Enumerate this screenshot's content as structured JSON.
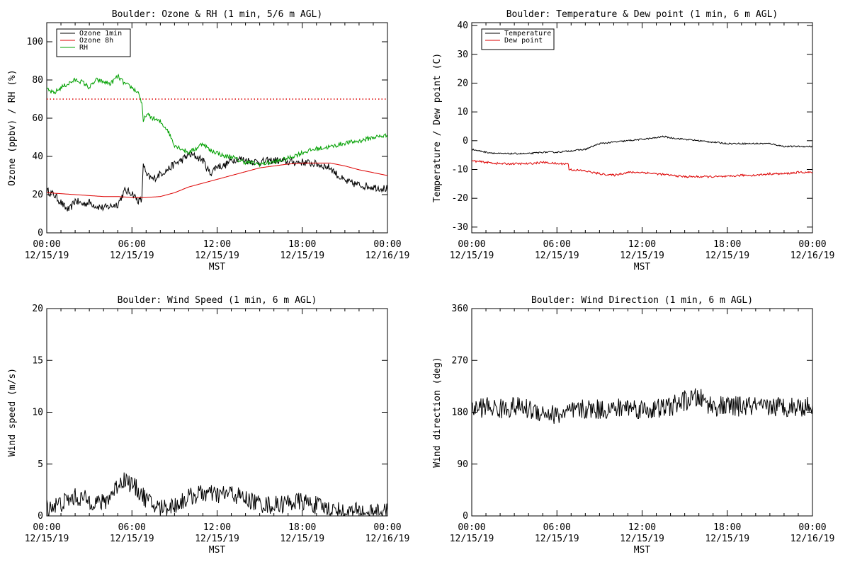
{
  "chart_data": [
    {
      "type": "line",
      "title": "Boulder: Ozone & RH (1 min, 5/6 m AGL)",
      "ylabel": "Ozone (ppbv) / RH (%)",
      "xlabel": "MST",
      "ylim": [
        0,
        110
      ],
      "yticks": [
        0,
        20,
        40,
        60,
        80,
        100
      ],
      "x_range_hours": [
        0,
        24
      ],
      "xtick_hours": [
        0,
        6,
        12,
        18,
        24
      ],
      "xtick_labels": [
        [
          "00:00",
          "12/15/19"
        ],
        [
          "06:00",
          "12/15/19"
        ],
        [
          "12:00",
          "12/15/19"
        ],
        [
          "18:00",
          "12/15/19"
        ],
        [
          "00:00",
          "12/16/19"
        ]
      ],
      "legend": {
        "position": "top-left",
        "entries": [
          {
            "name": "Ozone 1min",
            "color": "#000000"
          },
          {
            "name": "Ozone 8h",
            "color": "#dd0000"
          },
          {
            "name": "RH",
            "color": "#00a000"
          }
        ]
      },
      "reference_line": {
        "y": 70,
        "color": "#dd0000",
        "style": "dotted"
      },
      "series": [
        {
          "name": "Ozone 1min",
          "color": "#000000",
          "noise": 2.0,
          "x": [
            0,
            0.5,
            1,
            1.3,
            1.6,
            2,
            2.5,
            3,
            3.5,
            4,
            4.5,
            5,
            5.5,
            6,
            6.4,
            6.7,
            6.75,
            6.8,
            7,
            7.5,
            8,
            8.5,
            9,
            9.5,
            10,
            10.5,
            11,
            11.5,
            12,
            12.5,
            13,
            13.5,
            14,
            15,
            16,
            17,
            18,
            19,
            20,
            20.5,
            21,
            22,
            23,
            24
          ],
          "y": [
            22,
            20,
            16,
            13,
            12,
            17,
            15,
            16,
            14,
            13,
            14,
            15,
            22,
            21,
            17,
            17,
            28,
            37,
            30,
            28,
            31,
            33,
            36,
            38,
            41,
            40,
            38,
            31,
            35,
            35,
            38,
            39,
            38,
            37,
            38,
            37,
            37,
            36,
            34,
            30,
            27,
            25,
            24,
            23
          ]
        },
        {
          "name": "Ozone 8h",
          "color": "#dd0000",
          "noise": 0,
          "x": [
            0,
            2,
            4,
            5,
            6,
            7,
            8,
            9,
            10,
            11,
            12,
            13,
            14,
            15,
            16,
            17,
            18,
            19,
            20,
            21,
            22,
            23,
            24
          ],
          "y": [
            21,
            20,
            19,
            19,
            18.5,
            18.5,
            19,
            21,
            24,
            26,
            28,
            30,
            32,
            34,
            35,
            36,
            36.5,
            36.5,
            36.5,
            35,
            33,
            31.5,
            30
          ]
        },
        {
          "name": "RH",
          "color": "#00a000",
          "noise": 1.2,
          "x": [
            0,
            0.5,
            1,
            1.5,
            2,
            2.5,
            3,
            3.5,
            4,
            4.5,
            5,
            5.5,
            6,
            6.5,
            6.7,
            6.8,
            6.9,
            7,
            7.5,
            8,
            8.5,
            9,
            9.5,
            10,
            10.5,
            11,
            11.5,
            12,
            12.5,
            13,
            13.5,
            14,
            15,
            16,
            17,
            18,
            19,
            20,
            21,
            22,
            23,
            24
          ],
          "y": [
            75,
            73,
            76,
            78,
            80,
            79,
            76,
            80,
            79,
            78,
            82,
            78,
            76,
            73,
            67,
            58,
            60,
            62,
            60,
            58,
            54,
            46,
            44,
            42,
            44,
            47,
            43,
            42,
            40,
            40,
            38,
            37,
            36,
            37,
            39,
            42,
            44,
            45,
            47,
            48,
            50,
            51
          ]
        }
      ]
    },
    {
      "type": "line",
      "title": "Boulder: Temperature & Dew point (1 min, 6 m AGL)",
      "ylabel": "Temperature / Dew point (C)",
      "xlabel": "MST",
      "ylim": [
        -32,
        41
      ],
      "yticks": [
        -30,
        -20,
        -10,
        0,
        10,
        20,
        30,
        40
      ],
      "x_range_hours": [
        0,
        24
      ],
      "xtick_hours": [
        0,
        6,
        12,
        18,
        24
      ],
      "xtick_labels": [
        [
          "00:00",
          "12/15/19"
        ],
        [
          "06:00",
          "12/15/19"
        ],
        [
          "12:00",
          "12/15/19"
        ],
        [
          "18:00",
          "12/15/19"
        ],
        [
          "00:00",
          "12/16/19"
        ]
      ],
      "legend": {
        "position": "top-left",
        "entries": [
          {
            "name": "Temperature",
            "color": "#000000"
          },
          {
            "name": "Dew point",
            "color": "#dd0000"
          }
        ]
      },
      "series": [
        {
          "name": "Temperature",
          "color": "#000000",
          "noise": 0.25,
          "x": [
            0,
            1,
            2,
            3,
            4,
            5,
            6,
            7,
            8,
            9,
            10,
            11,
            12,
            13,
            13.5,
            14,
            15,
            16,
            17,
            18,
            19,
            20,
            21,
            22,
            23,
            24
          ],
          "y": [
            -3,
            -4,
            -4.5,
            -4.5,
            -4.5,
            -4,
            -4,
            -3.5,
            -3,
            -1,
            -0.5,
            0,
            0.5,
            1,
            1.5,
            1,
            0.5,
            0,
            -0.5,
            -1,
            -1,
            -1,
            -1,
            -2,
            -2,
            -2
          ]
        },
        {
          "name": "Dew point",
          "color": "#dd0000",
          "noise": 0.35,
          "x": [
            0,
            1,
            2,
            3,
            4,
            5,
            6,
            6.8,
            6.85,
            8,
            9,
            10,
            11,
            12,
            13,
            14,
            15,
            16,
            17,
            18,
            19,
            20,
            21,
            22,
            23,
            24
          ],
          "y": [
            -7,
            -7.5,
            -8,
            -8,
            -8,
            -7.5,
            -8,
            -8,
            -10,
            -10.5,
            -11.5,
            -12,
            -11,
            -11,
            -11.5,
            -12,
            -12.5,
            -12.5,
            -12.5,
            -12.5,
            -12,
            -12,
            -11.5,
            -11.5,
            -11,
            -11
          ]
        }
      ]
    },
    {
      "type": "line",
      "title": "Boulder: Wind Speed (1 min, 6 m AGL)",
      "ylabel": "Wind speed (m/s)",
      "xlabel": "MST",
      "ylim": [
        0,
        20
      ],
      "yticks": [
        0,
        5,
        10,
        15,
        20
      ],
      "x_range_hours": [
        0,
        24
      ],
      "xtick_hours": [
        0,
        6,
        12,
        18,
        24
      ],
      "xtick_labels": [
        [
          "00:00",
          "12/15/19"
        ],
        [
          "06:00",
          "12/15/19"
        ],
        [
          "12:00",
          "12/15/19"
        ],
        [
          "18:00",
          "12/15/19"
        ],
        [
          "00:00",
          "12/16/19"
        ]
      ],
      "series": [
        {
          "name": "",
          "color": "#000000",
          "noise": 0.9,
          "floor": 0,
          "x": [
            0,
            1,
            2,
            3,
            4,
            4.5,
            5,
            5.5,
            6,
            6.5,
            7,
            7.5,
            8,
            9,
            10,
            11,
            12,
            13,
            14,
            15,
            16,
            17,
            18,
            19,
            20,
            21,
            22,
            23,
            24
          ],
          "y": [
            0.8,
            1.2,
            1.8,
            1.5,
            1.2,
            2.0,
            3.0,
            3.6,
            3.0,
            2.4,
            1.6,
            1.0,
            0.8,
            1.0,
            1.8,
            2.2,
            2.0,
            2.2,
            1.6,
            1.2,
            1.0,
            1.3,
            1.4,
            1.0,
            0.6,
            0.4,
            0.4,
            0.3,
            0.3
          ]
        }
      ]
    },
    {
      "type": "line",
      "title": "Boulder: Wind Direction (1 min, 6 m AGL)",
      "ylabel": "Wind direction (deg)",
      "xlabel": "MST",
      "ylim": [
        0,
        360
      ],
      "yticks": [
        0,
        90,
        180,
        270,
        360
      ],
      "x_range_hours": [
        0,
        24
      ],
      "xtick_hours": [
        0,
        6,
        12,
        18,
        24
      ],
      "xtick_labels": [
        [
          "00:00",
          "12/15/19"
        ],
        [
          "06:00",
          "12/15/19"
        ],
        [
          "12:00",
          "12/15/19"
        ],
        [
          "18:00",
          "12/15/19"
        ],
        [
          "00:00",
          "12/16/19"
        ]
      ],
      "series": [
        {
          "name": "",
          "color": "#000000",
          "noise": 18,
          "floor": 0,
          "ceil": 360,
          "x": [
            0,
            1,
            2,
            3,
            4,
            5,
            6,
            7,
            8,
            9,
            10,
            11,
            12,
            13,
            14,
            15,
            16,
            17,
            18,
            19,
            20,
            20.5,
            21,
            22,
            23,
            24
          ],
          "y": [
            185,
            190,
            185,
            190,
            185,
            180,
            175,
            180,
            185,
            185,
            185,
            190,
            185,
            185,
            190,
            200,
            205,
            190,
            190,
            190,
            190,
            185,
            190,
            190,
            190,
            190
          ]
        }
      ]
    }
  ]
}
